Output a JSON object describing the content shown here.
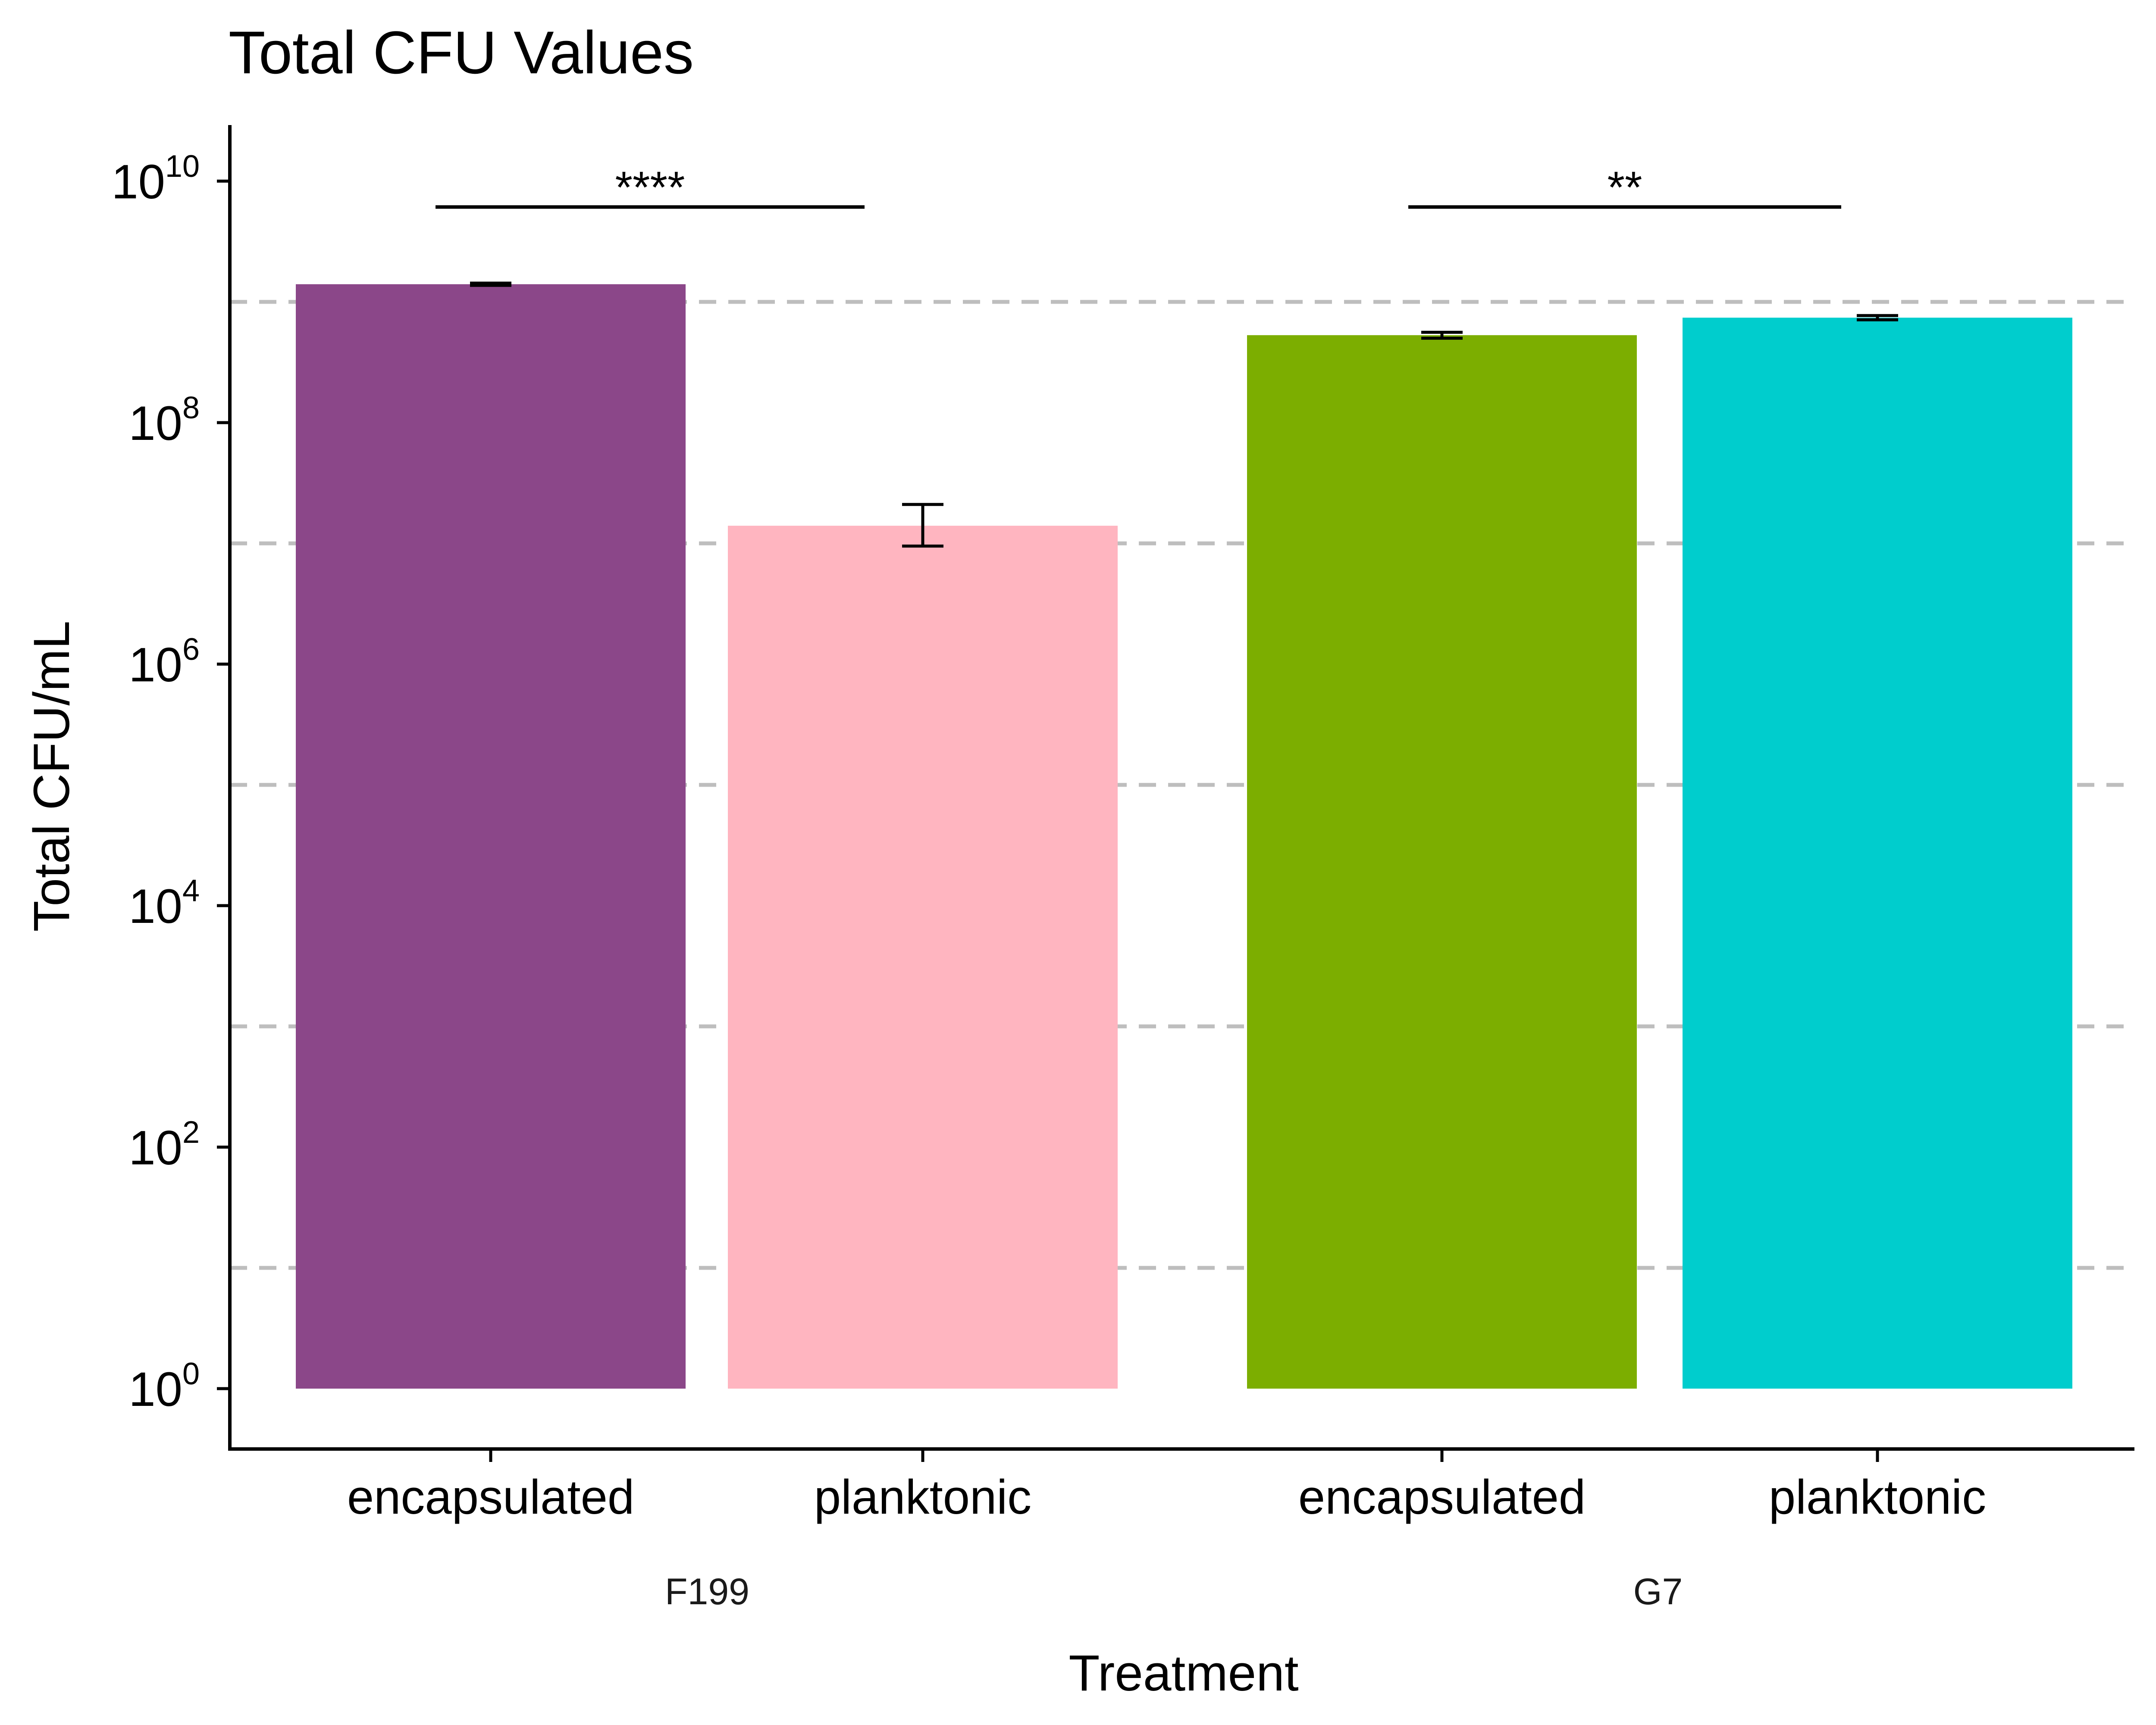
{
  "chart_data": {
    "type": "bar",
    "title": "Total CFU Values",
    "xlabel": "Treatment",
    "ylabel": "Total CFU/mL",
    "y_scale": "log10",
    "ylim": [
      1,
      10000000000
    ],
    "y_ticks": [
      {
        "base": "10",
        "exp": "0",
        "value": 1
      },
      {
        "base": "10",
        "exp": "2",
        "value": 100
      },
      {
        "base": "10",
        "exp": "4",
        "value": 10000
      },
      {
        "base": "10",
        "exp": "6",
        "value": 1000000
      },
      {
        "base": "10",
        "exp": "8",
        "value": 100000000
      },
      {
        "base": "10",
        "exp": "10",
        "value": 10000000000
      }
    ],
    "grid": "horizontal dashed at odd powers of ten",
    "legend": "none",
    "groups": [
      {
        "name": "F199",
        "bars": [
          {
            "category": "encapsulated",
            "value": 1400000000,
            "err_low": 1370000000,
            "err_high": 1430000000,
            "color": "#8B4789"
          },
          {
            "category": "planktonic",
            "value": 14000000,
            "err_low": 9500000,
            "err_high": 21000000,
            "color": "#FFB5C0"
          }
        ],
        "significance": "****"
      },
      {
        "name": "G7",
        "bars": [
          {
            "category": "encapsulated",
            "value": 530000000,
            "err_low": 500000000,
            "err_high": 560000000,
            "color": "#7CAE00"
          },
          {
            "category": "planktonic",
            "value": 740000000,
            "err_low": 710000000,
            "err_high": 770000000,
            "color": "#00CDCD"
          }
        ],
        "significance": "**"
      }
    ]
  }
}
